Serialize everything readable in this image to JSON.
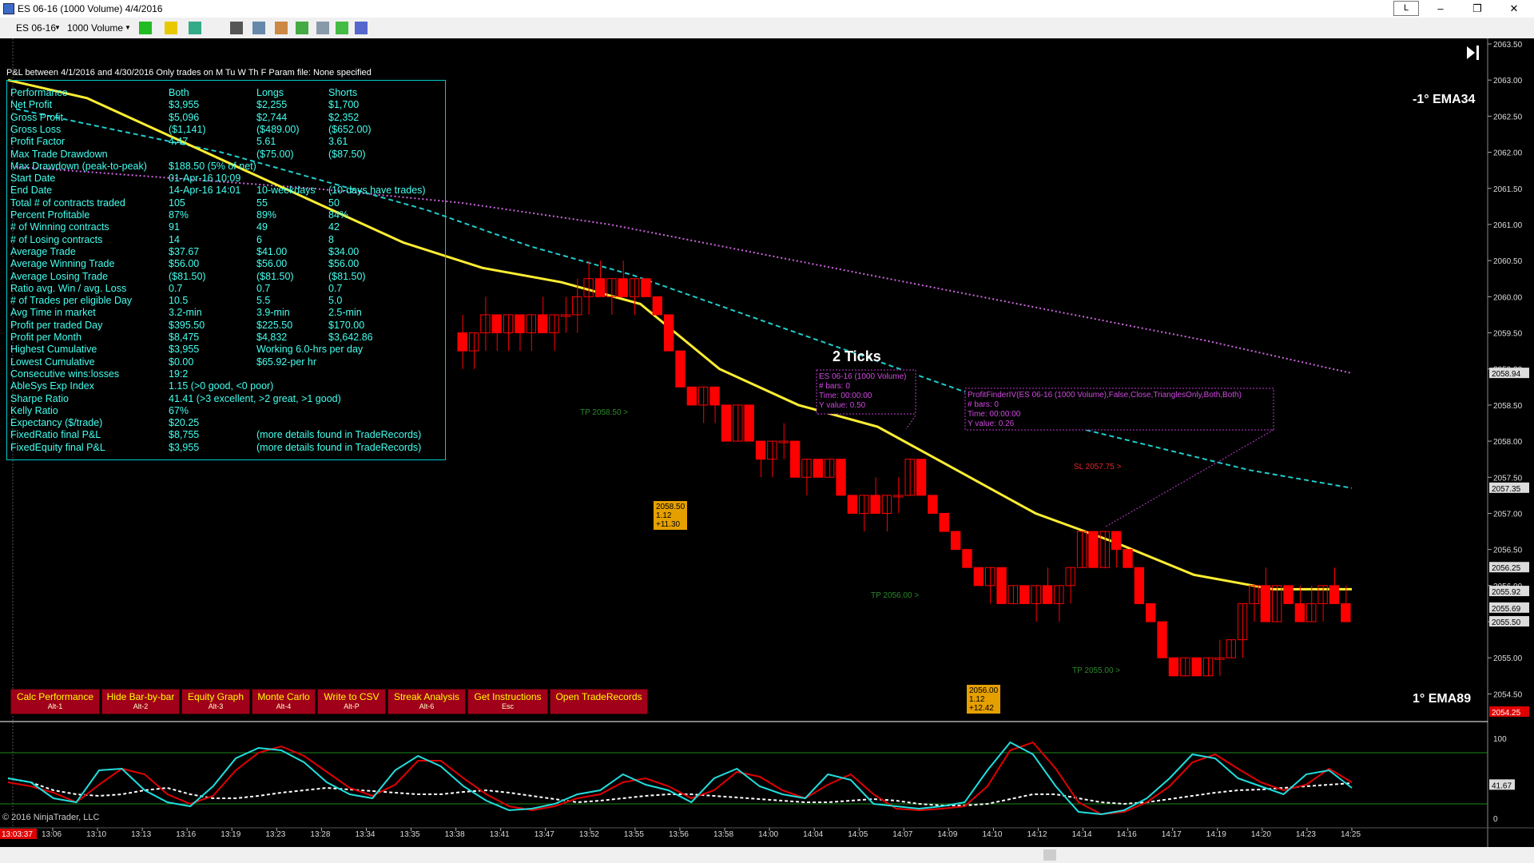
{
  "window": {
    "title": "ES 06-16 (1000 Volume)  4/4/2016",
    "l_label": "L",
    "minimize": "–",
    "restore": "❐",
    "close": "✕"
  },
  "toolbar": {
    "instrument": "ES 06-16",
    "interval": "1000 Volume"
  },
  "header": {
    "pnl_text": "P&L between 4/1/2016 and 4/30/2016  Only trades on M Tu W Th F   Param file: None specified"
  },
  "stats": {
    "columns": [
      "Performance",
      "Both",
      "Longs",
      "Shorts"
    ],
    "rows": [
      [
        "Net Profit",
        "$3,955",
        "$2,255",
        "$1,700"
      ],
      [
        "Gross Profit",
        "$5,096",
        "$2,744",
        "$2,352"
      ],
      [
        "Gross Loss",
        "($1,141)",
        "($489.00)",
        "($652.00)"
      ],
      [
        "Profit Factor",
        "4.47",
        "5.61",
        "3.61"
      ],
      [
        "Max Trade Drawdown",
        "",
        "($75.00)",
        "($87.50)"
      ],
      [
        "Max Drawdown (peak-to-peak)",
        "$188.50 (5% of net)",
        "",
        ""
      ],
      [
        "Start Date",
        "01-Apr-16 10:09",
        "",
        ""
      ],
      [
        "End Date",
        "14-Apr-16 14:01",
        "10-weekdays",
        "(10-days have trades)"
      ],
      [
        "Total # of contracts traded",
        "105",
        "55",
        "50"
      ],
      [
        "Percent Profitable",
        "87%",
        "89%",
        "84%"
      ],
      [
        "# of Winning contracts",
        "91",
        "49",
        "42"
      ],
      [
        "# of Losing contracts",
        "14",
        "6",
        "8"
      ],
      [
        "Average Trade",
        "$37.67",
        "$41.00",
        "$34.00"
      ],
      [
        "Average Winning Trade",
        "$56.00",
        "$56.00",
        "$56.00"
      ],
      [
        "Average Losing Trade",
        "($81.50)",
        "($81.50)",
        "($81.50)"
      ],
      [
        "Ratio avg. Win / avg. Loss",
        "0.7",
        "0.7",
        "0.7"
      ],
      [
        "# of Trades per eligible Day",
        "10.5",
        "5.5",
        "5.0"
      ],
      [
        "Avg Time in market",
        "3.2-min",
        "3.9-min",
        "2.5-min"
      ],
      [
        "Profit per traded Day",
        "$395.50",
        "$225.50",
        "$170.00"
      ],
      [
        "Profit per Month",
        "$8,475",
        "$4,832",
        "$3,642.86"
      ],
      [
        "Highest Cumulative",
        "$3,955",
        "Working 6.0-hrs per day",
        ""
      ],
      [
        "Lowest Cumulative",
        "$0.00",
        "$65.92-per hr",
        ""
      ],
      [
        "Consecutive wins:losses",
        "19:2",
        "",
        ""
      ],
      [
        "AbleSys Exp Index",
        "1.15 (>0 good, <0 poor)",
        "",
        ""
      ],
      [
        "Sharpe Ratio",
        "41.41 (>3 excellent, >2 great, >1 good)",
        "",
        ""
      ],
      [
        "Kelly Ratio",
        "67%",
        "",
        ""
      ],
      [
        "Expectancy ($/trade)",
        "$20.25",
        "",
        ""
      ],
      [
        "FixedRatio final P&L",
        "$8,755",
        "(more details found in TradeRecords)",
        ""
      ],
      [
        "FixedEquity final P&L",
        "$3,955",
        "(more details found in TradeRecords)",
        ""
      ]
    ]
  },
  "buttons": [
    {
      "label": "Calc Performance",
      "hotkey": "Alt-1"
    },
    {
      "label": "Hide Bar-by-bar",
      "hotkey": "Alt-2"
    },
    {
      "label": "Equity Graph",
      "hotkey": "Alt-3"
    },
    {
      "label": "Monte Carlo",
      "hotkey": "Alt-4"
    },
    {
      "label": "Write to CSV",
      "hotkey": "Alt-P"
    },
    {
      "label": "Streak Analysis",
      "hotkey": "Alt-6"
    },
    {
      "label": "Get Instructions",
      "hotkey": "Esc"
    },
    {
      "label": "Open TradeRecords",
      "hotkey": ""
    }
  ],
  "labels": {
    "ema34": "-1° EMA34",
    "ema89": "1° EMA89",
    "ticks": "2 Ticks",
    "tp1": "TP 2058.50 >",
    "tp2": "TP 2056.00 >",
    "tp3": "TP 2055.00 >",
    "sl": "SL 2057.75 >",
    "copyright": "© 2016 NinjaTrader, LLC",
    "current_time": "13:03:37"
  },
  "trade_boxes": [
    {
      "lines": [
        "2058.50",
        "1.12",
        "+11.30"
      ]
    },
    {
      "lines": [
        "2056.00",
        "1.12",
        "+12.42"
      ]
    }
  ],
  "tooltips": [
    {
      "lines": [
        "ES 06-16 (1000 Volume)",
        "# bars:   0",
        "Time:     00:00:00",
        "Y value: 0.50"
      ]
    },
    {
      "lines": [
        "ProfitFinderIV(ES 06-16 (1000 Volume),False,Close,TrianglesOnly,Both,Both)",
        "# bars:   0",
        "Time:     00:00:00",
        "Y value: 0.26"
      ]
    }
  ],
  "colors": {
    "price_line": "#ffee33",
    "ema34": "#22cccc",
    "ema89": "#cc66dd",
    "candle": "#ff0000",
    "bg": "#000000",
    "stats_text": "#44ffee",
    "button": "#a0001a",
    "button_text": "#ffff00"
  },
  "chart_data": {
    "type": "candlestick",
    "ylim": [
      2054.25,
      2063.5
    ],
    "price_ticks": [
      "2063.50",
      "2063.00",
      "2062.50",
      "2062.00",
      "2061.50",
      "2061.00",
      "2060.50",
      "2060.00",
      "2059.50",
      "2059.00",
      "2058.50",
      "2058.00",
      "2057.50",
      "2057.00",
      "2056.50",
      "2056.00",
      "2055.50",
      "2055.00",
      "2054.50"
    ],
    "price_tags": {
      "ema89": "2058.94",
      "ema34": "2057.35",
      "p1": "2056.25",
      "p2": "2055.92",
      "p3": "2055.69",
      "p4": "2055.50",
      "current": "2054.25"
    },
    "time_ticks": [
      "13:06",
      "13:10",
      "13:13",
      "13:16",
      "13:19",
      "13:23",
      "13:28",
      "13:34",
      "13:35",
      "13:38",
      "13:41",
      "13:47",
      "13:52",
      "13:55",
      "13:56",
      "13:58",
      "14:00",
      "14:04",
      "14:05",
      "14:07",
      "14:09",
      "14:10",
      "14:12",
      "14:14",
      "14:16",
      "14:17",
      "14:19",
      "14:20",
      "14:23",
      "14:25"
    ],
    "candles": [
      [
        2059.5,
        2059.75,
        2059.0,
        2059.25
      ],
      [
        2059.25,
        2059.5,
        2059.0,
        2059.5
      ],
      [
        2059.5,
        2060.0,
        2059.25,
        2059.75
      ],
      [
        2059.75,
        2059.75,
        2059.25,
        2059.5
      ],
      [
        2059.5,
        2059.75,
        2059.25,
        2059.75
      ],
      [
        2059.75,
        2059.75,
        2059.25,
        2059.5
      ],
      [
        2059.5,
        2059.75,
        2059.25,
        2059.75
      ],
      [
        2059.75,
        2060.0,
        2059.5,
        2059.5
      ],
      [
        2059.5,
        2059.75,
        2059.25,
        2059.75
      ],
      [
        2059.75,
        2060.0,
        2059.5,
        2059.75
      ],
      [
        2059.75,
        2060.25,
        2059.5,
        2060.0
      ],
      [
        2060.0,
        2060.5,
        2059.75,
        2060.25
      ],
      [
        2060.25,
        2060.5,
        2060.0,
        2060.0
      ],
      [
        2060.0,
        2060.25,
        2059.75,
        2060.25
      ],
      [
        2060.25,
        2060.5,
        2060.0,
        2060.0
      ],
      [
        2060.0,
        2060.25,
        2059.75,
        2060.25
      ],
      [
        2060.25,
        2060.25,
        2060.0,
        2060.0
      ],
      [
        2060.0,
        2060.0,
        2059.75,
        2059.75
      ],
      [
        2059.75,
        2059.75,
        2059.25,
        2059.25
      ],
      [
        2059.25,
        2059.25,
        2058.75,
        2058.75
      ],
      [
        2058.75,
        2058.75,
        2058.5,
        2058.5
      ],
      [
        2058.5,
        2058.75,
        2058.25,
        2058.75
      ],
      [
        2058.75,
        2058.75,
        2058.25,
        2058.5
      ],
      [
        2058.5,
        2058.5,
        2058.0,
        2058.0
      ],
      [
        2058.0,
        2058.5,
        2058.0,
        2058.5
      ],
      [
        2058.5,
        2058.5,
        2058.0,
        2058.0
      ],
      [
        2058.0,
        2058.0,
        2057.5,
        2057.75
      ],
      [
        2057.75,
        2058.0,
        2057.5,
        2058.0
      ],
      [
        2058.0,
        2058.25,
        2057.75,
        2058.0
      ],
      [
        2058.0,
        2058.0,
        2057.5,
        2057.5
      ],
      [
        2057.5,
        2057.75,
        2057.25,
        2057.75
      ],
      [
        2057.75,
        2057.75,
        2057.5,
        2057.5
      ],
      [
        2057.5,
        2057.75,
        2057.5,
        2057.75
      ],
      [
        2057.75,
        2057.75,
        2057.25,
        2057.25
      ],
      [
        2057.25,
        2057.25,
        2057.0,
        2057.0
      ],
      [
        2057.0,
        2057.25,
        2056.75,
        2057.25
      ],
      [
        2057.25,
        2057.5,
        2057.0,
        2057.0
      ],
      [
        2057.0,
        2057.25,
        2056.75,
        2057.25
      ],
      [
        2057.25,
        2057.5,
        2057.0,
        2057.25
      ],
      [
        2057.25,
        2057.75,
        2057.25,
        2057.75
      ],
      [
        2057.75,
        2057.75,
        2057.25,
        2057.25
      ],
      [
        2057.25,
        2057.25,
        2057.0,
        2057.0
      ],
      [
        2057.0,
        2057.0,
        2056.75,
        2056.75
      ],
      [
        2056.75,
        2056.75,
        2056.5,
        2056.5
      ],
      [
        2056.5,
        2056.5,
        2056.25,
        2056.25
      ],
      [
        2056.25,
        2056.25,
        2056.0,
        2056.0
      ],
      [
        2056.0,
        2056.25,
        2055.75,
        2056.25
      ],
      [
        2056.25,
        2056.25,
        2055.75,
        2055.75
      ],
      [
        2055.75,
        2056.0,
        2055.75,
        2056.0
      ],
      [
        2056.0,
        2056.0,
        2055.75,
        2055.75
      ],
      [
        2055.75,
        2056.0,
        2055.5,
        2056.0
      ],
      [
        2056.0,
        2056.25,
        2055.75,
        2055.75
      ],
      [
        2055.75,
        2056.0,
        2055.5,
        2056.0
      ],
      [
        2056.0,
        2056.25,
        2055.75,
        2056.25
      ],
      [
        2056.25,
        2056.75,
        2056.25,
        2056.75
      ],
      [
        2056.75,
        2056.75,
        2056.25,
        2056.25
      ],
      [
        2056.25,
        2056.75,
        2056.25,
        2056.75
      ],
      [
        2056.75,
        2056.75,
        2056.25,
        2056.5
      ],
      [
        2056.5,
        2056.5,
        2056.25,
        2056.25
      ],
      [
        2056.25,
        2056.25,
        2055.75,
        2055.75
      ],
      [
        2055.75,
        2055.75,
        2055.5,
        2055.5
      ],
      [
        2055.5,
        2055.5,
        2055.0,
        2055.0
      ],
      [
        2055.0,
        2055.0,
        2054.75,
        2054.75
      ],
      [
        2054.75,
        2055.0,
        2054.75,
        2055.0
      ],
      [
        2055.0,
        2055.0,
        2054.75,
        2054.75
      ],
      [
        2054.75,
        2055.0,
        2054.75,
        2055.0
      ],
      [
        2055.0,
        2055.25,
        2054.75,
        2055.0
      ],
      [
        2055.0,
        2055.25,
        2055.0,
        2055.25
      ],
      [
        2055.25,
        2055.75,
        2055.0,
        2055.75
      ],
      [
        2055.75,
        2056.0,
        2055.5,
        2056.0
      ],
      [
        2056.0,
        2056.25,
        2055.5,
        2055.5
      ],
      [
        2055.5,
        2056.0,
        2055.5,
        2056.0
      ],
      [
        2056.0,
        2056.0,
        2055.75,
        2055.75
      ],
      [
        2055.75,
        2056.0,
        2055.5,
        2055.5
      ],
      [
        2055.5,
        2056.0,
        2055.5,
        2055.75
      ],
      [
        2055.75,
        2056.0,
        2055.5,
        2056.0
      ],
      [
        2056.0,
        2056.25,
        2055.75,
        2055.75
      ],
      [
        2055.75,
        2056.0,
        2055.5,
        2055.5
      ]
    ],
    "price_line": [
      2063.0,
      2062.75,
      2062.25,
      2061.75,
      2061.25,
      2060.75,
      2060.4,
      2060.2,
      2059.9,
      2059.0,
      2058.5,
      2058.2,
      2057.6,
      2057.0,
      2056.6,
      2056.15,
      2055.95,
      2055.95
    ],
    "ema34_line": [
      2062.6,
      2062.3,
      2062.0,
      2061.6,
      2061.2,
      2060.7,
      2060.3,
      2059.8,
      2059.3,
      2058.8,
      2058.3,
      2057.95,
      2057.6,
      2057.35
    ],
    "ema89_line": [
      2061.8,
      2061.65,
      2061.5,
      2061.3,
      2061.0,
      2060.6,
      2060.2,
      2059.8,
      2059.4,
      2058.94
    ],
    "oscillator": {
      "ylim": [
        0,
        100
      ],
      "levels": [
        18,
        82
      ],
      "ticks": [
        "100",
        "0"
      ],
      "tags": [
        "41.67"
      ],
      "cyan": [
        50,
        45,
        25,
        20,
        60,
        62,
        35,
        20,
        15,
        40,
        75,
        88,
        85,
        70,
        45,
        30,
        25,
        60,
        78,
        65,
        40,
        22,
        10,
        12,
        18,
        30,
        35,
        55,
        42,
        35,
        20,
        50,
        62,
        40,
        30,
        25,
        55,
        48,
        18,
        15,
        12,
        15,
        20,
        60,
        95,
        80,
        40,
        8,
        5,
        10,
        25,
        50,
        80,
        75,
        50,
        40,
        30,
        55,
        60,
        38
      ],
      "red": [
        45,
        40,
        32,
        20,
        42,
        62,
        55,
        30,
        18,
        28,
        60,
        82,
        90,
        78,
        58,
        38,
        28,
        42,
        72,
        72,
        50,
        30,
        15,
        10,
        15,
        25,
        30,
        45,
        50,
        40,
        25,
        35,
        58,
        52,
        35,
        25,
        42,
        55,
        30,
        12,
        10,
        12,
        15,
        40,
        85,
        95,
        62,
        20,
        5,
        8,
        20,
        40,
        70,
        80,
        62,
        45,
        35,
        42,
        62,
        45
      ],
      "white": [
        50,
        45,
        35,
        30,
        28,
        30,
        35,
        38,
        30,
        25,
        25,
        28,
        32,
        35,
        38,
        36,
        34,
        32,
        30,
        30,
        33,
        35,
        32,
        28,
        24,
        20,
        22,
        25,
        28,
        30,
        30,
        28,
        26,
        24,
        22,
        20,
        20,
        22,
        24,
        22,
        18,
        16,
        16,
        18,
        24,
        30,
        30,
        25,
        20,
        18,
        20,
        24,
        28,
        32,
        35,
        36,
        38,
        40,
        42,
        44
      ]
    }
  }
}
